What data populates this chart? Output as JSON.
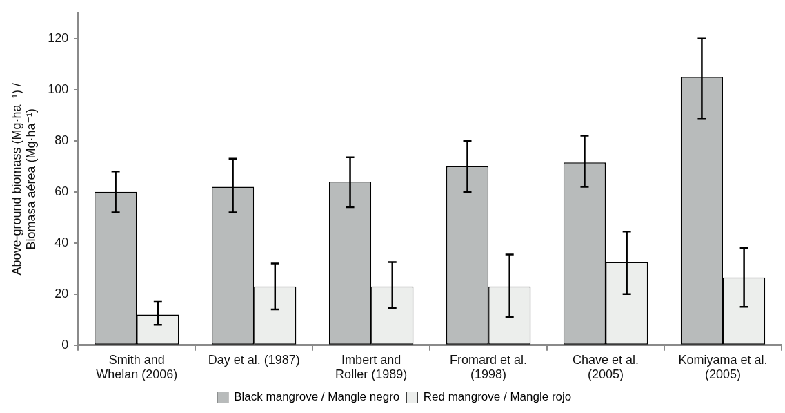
{
  "chart_data": {
    "type": "bar",
    "ylabel": "Above-ground biomass (Mg·ha⁻¹) / Biomasa aérea (Mg·ha⁻¹)",
    "categories": [
      "Smith and Whelan (2006)",
      "Day et al. (1987)",
      "Imbert and Roller (1989)",
      "Fromard et al. (1998)",
      "Chave et al. (2005)",
      "Komiyama et al. (2005)"
    ],
    "series": [
      {
        "name": "Black mangrove / Mangle negro",
        "color": "#b8bbbb",
        "values": [
          60,
          62,
          64,
          70,
          71.5,
          105
        ],
        "errors": [
          [
            52,
            68
          ],
          [
            52,
            73
          ],
          [
            54,
            73.5
          ],
          [
            60,
            80
          ],
          [
            62,
            82
          ],
          [
            88.5,
            120
          ]
        ]
      },
      {
        "name": "Red mangrove / Mangle rojo",
        "color": "#eceeec",
        "values": [
          12,
          23,
          23,
          23,
          32.5,
          26.5
        ],
        "errors": [
          [
            8,
            17
          ],
          [
            14,
            32
          ],
          [
            14.5,
            32.5
          ],
          [
            11,
            35.5
          ],
          [
            20,
            44.5
          ],
          [
            15,
            38
          ]
        ]
      }
    ],
    "ylim": [
      0,
      130
    ],
    "yticks": [
      0,
      20,
      40,
      60,
      80,
      100,
      120
    ],
    "grid": false,
    "legend": "bottom"
  }
}
